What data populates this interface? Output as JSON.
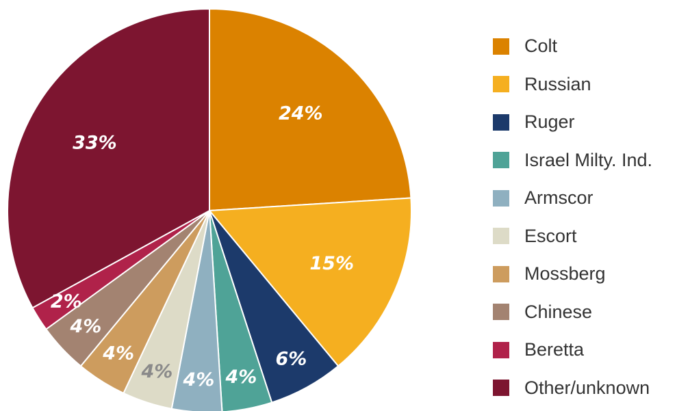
{
  "chart_data": {
    "type": "pie",
    "title": "",
    "slices": [
      {
        "name": "Colt",
        "value": 24,
        "label": "24%",
        "color": "#DB8200",
        "label_color": "#ffffff"
      },
      {
        "name": "Russian",
        "value": 15,
        "label": "15%",
        "color": "#F5AF20",
        "label_color": "#ffffff"
      },
      {
        "name": "Ruger",
        "value": 6,
        "label": "6%",
        "color": "#1C3A6B",
        "label_color": "#ffffff"
      },
      {
        "name": "Israel Milty. Ind.",
        "value": 4,
        "label": "4%",
        "color": "#4FA397",
        "label_color": "#ffffff"
      },
      {
        "name": "Armscor",
        "value": 4,
        "label": "4%",
        "color": "#8FB0C0",
        "label_color": "#ffffff"
      },
      {
        "name": "Escort",
        "value": 4,
        "label": "4%",
        "color": "#DDDBC7",
        "label_color": "#8a8a8a"
      },
      {
        "name": "Mossberg",
        "value": 4,
        "label": "4%",
        "color": "#CD9C5E",
        "label_color": "#ffffff"
      },
      {
        "name": "Chinese",
        "value": 4,
        "label": "4%",
        "color": "#A38371",
        "label_color": "#ffffff"
      },
      {
        "name": "Beretta",
        "value": 2,
        "label": "2%",
        "color": "#B0224A",
        "label_color": "#ffffff"
      },
      {
        "name": "Other/unknown",
        "value": 33,
        "label": "33%",
        "color": "#7D1530",
        "label_color": "#ffffff"
      }
    ],
    "legend_position": "right"
  }
}
